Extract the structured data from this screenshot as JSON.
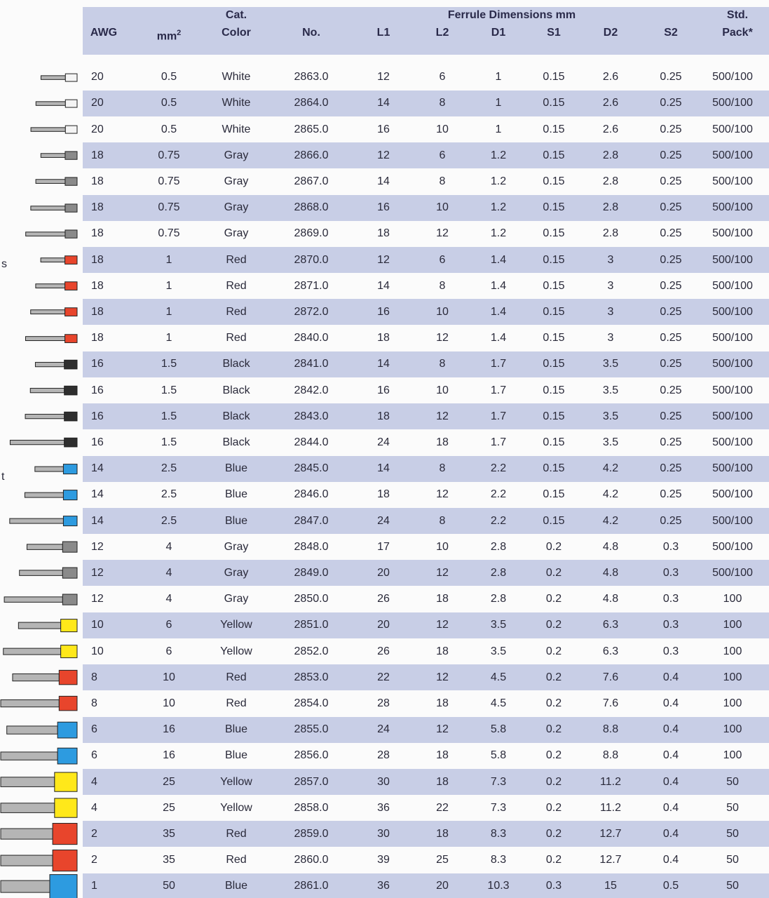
{
  "header": {
    "group_labels": {
      "cat": "Cat.",
      "ferrule": "Ferrule Dimensions mm",
      "std": "Std."
    },
    "columns": [
      "AWG",
      {
        "text": "mm",
        "sup": "2"
      },
      "Color",
      "No.",
      "L1",
      "L2",
      "D1",
      "S1",
      "D2",
      "S2",
      "Pack*"
    ]
  },
  "rows": [
    [
      "20",
      "0.5",
      "White",
      "2863.0",
      "12",
      "6",
      "1",
      "0.15",
      "2.6",
      "0.25",
      "500/100"
    ],
    [
      "20",
      "0.5",
      "White",
      "2864.0",
      "14",
      "8",
      "1",
      "0.15",
      "2.6",
      "0.25",
      "500/100"
    ],
    [
      "20",
      "0.5",
      "White",
      "2865.0",
      "16",
      "10",
      "1",
      "0.15",
      "2.6",
      "0.25",
      "500/100"
    ],
    [
      "18",
      "0.75",
      "Gray",
      "2866.0",
      "12",
      "6",
      "1.2",
      "0.15",
      "2.8",
      "0.25",
      "500/100"
    ],
    [
      "18",
      "0.75",
      "Gray",
      "2867.0",
      "14",
      "8",
      "1.2",
      "0.15",
      "2.8",
      "0.25",
      "500/100"
    ],
    [
      "18",
      "0.75",
      "Gray",
      "2868.0",
      "16",
      "10",
      "1.2",
      "0.15",
      "2.8",
      "0.25",
      "500/100"
    ],
    [
      "18",
      "0.75",
      "Gray",
      "2869.0",
      "18",
      "12",
      "1.2",
      "0.15",
      "2.8",
      "0.25",
      "500/100"
    ],
    [
      "18",
      "1",
      "Red",
      "2870.0",
      "12",
      "6",
      "1.4",
      "0.15",
      "3",
      "0.25",
      "500/100"
    ],
    [
      "18",
      "1",
      "Red",
      "2871.0",
      "14",
      "8",
      "1.4",
      "0.15",
      "3",
      "0.25",
      "500/100"
    ],
    [
      "18",
      "1",
      "Red",
      "2872.0",
      "16",
      "10",
      "1.4",
      "0.15",
      "3",
      "0.25",
      "500/100"
    ],
    [
      "18",
      "1",
      "Red",
      "2840.0",
      "18",
      "12",
      "1.4",
      "0.15",
      "3",
      "0.25",
      "500/100"
    ],
    [
      "16",
      "1.5",
      "Black",
      "2841.0",
      "14",
      "8",
      "1.7",
      "0.15",
      "3.5",
      "0.25",
      "500/100"
    ],
    [
      "16",
      "1.5",
      "Black",
      "2842.0",
      "16",
      "10",
      "1.7",
      "0.15",
      "3.5",
      "0.25",
      "500/100"
    ],
    [
      "16",
      "1.5",
      "Black",
      "2843.0",
      "18",
      "12",
      "1.7",
      "0.15",
      "3.5",
      "0.25",
      "500/100"
    ],
    [
      "16",
      "1.5",
      "Black",
      "2844.0",
      "24",
      "18",
      "1.7",
      "0.15",
      "3.5",
      "0.25",
      "500/100"
    ],
    [
      "14",
      "2.5",
      "Blue",
      "2845.0",
      "14",
      "8",
      "2.2",
      "0.15",
      "4.2",
      "0.25",
      "500/100"
    ],
    [
      "14",
      "2.5",
      "Blue",
      "2846.0",
      "18",
      "12",
      "2.2",
      "0.15",
      "4.2",
      "0.25",
      "500/100"
    ],
    [
      "14",
      "2.5",
      "Blue",
      "2847.0",
      "24",
      "8",
      "2.2",
      "0.15",
      "4.2",
      "0.25",
      "500/100"
    ],
    [
      "12",
      "4",
      "Gray",
      "2848.0",
      "17",
      "10",
      "2.8",
      "0.2",
      "4.8",
      "0.3",
      "500/100"
    ],
    [
      "12",
      "4",
      "Gray",
      "2849.0",
      "20",
      "12",
      "2.8",
      "0.2",
      "4.8",
      "0.3",
      "500/100"
    ],
    [
      "12",
      "4",
      "Gray",
      "2850.0",
      "26",
      "18",
      "2.8",
      "0.2",
      "4.8",
      "0.3",
      "100"
    ],
    [
      "10",
      "6",
      "Yellow",
      "2851.0",
      "20",
      "12",
      "3.5",
      "0.2",
      "6.3",
      "0.3",
      "100"
    ],
    [
      "10",
      "6",
      "Yellow",
      "2852.0",
      "26",
      "18",
      "3.5",
      "0.2",
      "6.3",
      "0.3",
      "100"
    ],
    [
      "8",
      "10",
      "Red",
      "2853.0",
      "22",
      "12",
      "4.5",
      "0.2",
      "7.6",
      "0.4",
      "100"
    ],
    [
      "8",
      "10",
      "Red",
      "2854.0",
      "28",
      "18",
      "4.5",
      "0.2",
      "7.6",
      "0.4",
      "100"
    ],
    [
      "6",
      "16",
      "Blue",
      "2855.0",
      "24",
      "12",
      "5.8",
      "0.2",
      "8.8",
      "0.4",
      "100"
    ],
    [
      "6",
      "16",
      "Blue",
      "2856.0",
      "28",
      "18",
      "5.8",
      "0.2",
      "8.8",
      "0.4",
      "100"
    ],
    [
      "4",
      "25",
      "Yellow",
      "2857.0",
      "30",
      "18",
      "7.3",
      "0.2",
      "11.2",
      "0.4",
      "50"
    ],
    [
      "4",
      "25",
      "Yellow",
      "2858.0",
      "36",
      "22",
      "7.3",
      "0.2",
      "11.2",
      "0.4",
      "50"
    ],
    [
      "2",
      "35",
      "Red",
      "2859.0",
      "30",
      "18",
      "8.3",
      "0.2",
      "12.7",
      "0.4",
      "50"
    ],
    [
      "2",
      "35",
      "Red",
      "2860.0",
      "39",
      "25",
      "8.3",
      "0.2",
      "12.7",
      "0.4",
      "50"
    ],
    [
      "1",
      "50",
      "Blue",
      "2861.0",
      "36",
      "20",
      "10.3",
      "0.3",
      "15",
      "0.5",
      "50"
    ]
  ],
  "fragments": [
    "s",
    "t"
  ]
}
